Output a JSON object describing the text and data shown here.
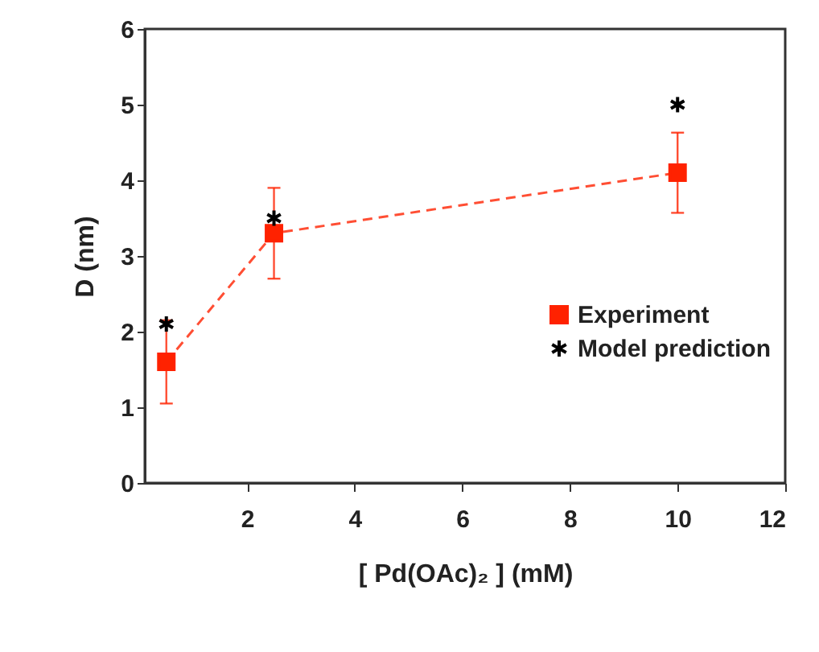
{
  "chart_data": {
    "type": "line",
    "xlabel": "[ Pd(OAc)₂ ] (mM)",
    "ylabel": "D (nm)",
    "x": [
      0.5,
      2.5,
      10
    ],
    "xlim": [
      0.1,
      12
    ],
    "xticks": [
      2,
      4,
      6,
      8,
      10,
      12
    ],
    "ylim": [
      0,
      6
    ],
    "yticks": [
      0,
      1,
      2,
      3,
      4,
      5,
      6
    ],
    "legend": "right",
    "series": [
      {
        "name": "Experiment",
        "color": "#ff2200",
        "marker": "square",
        "line_style": "dashed",
        "values": [
          1.6,
          3.3,
          4.1
        ],
        "errors": [
          0.55,
          0.6,
          0.53
        ]
      },
      {
        "name": "Model prediction",
        "type": "scatter",
        "color": "#000000",
        "marker": "cross",
        "values": [
          2.1,
          3.5,
          5.0
        ]
      }
    ]
  }
}
